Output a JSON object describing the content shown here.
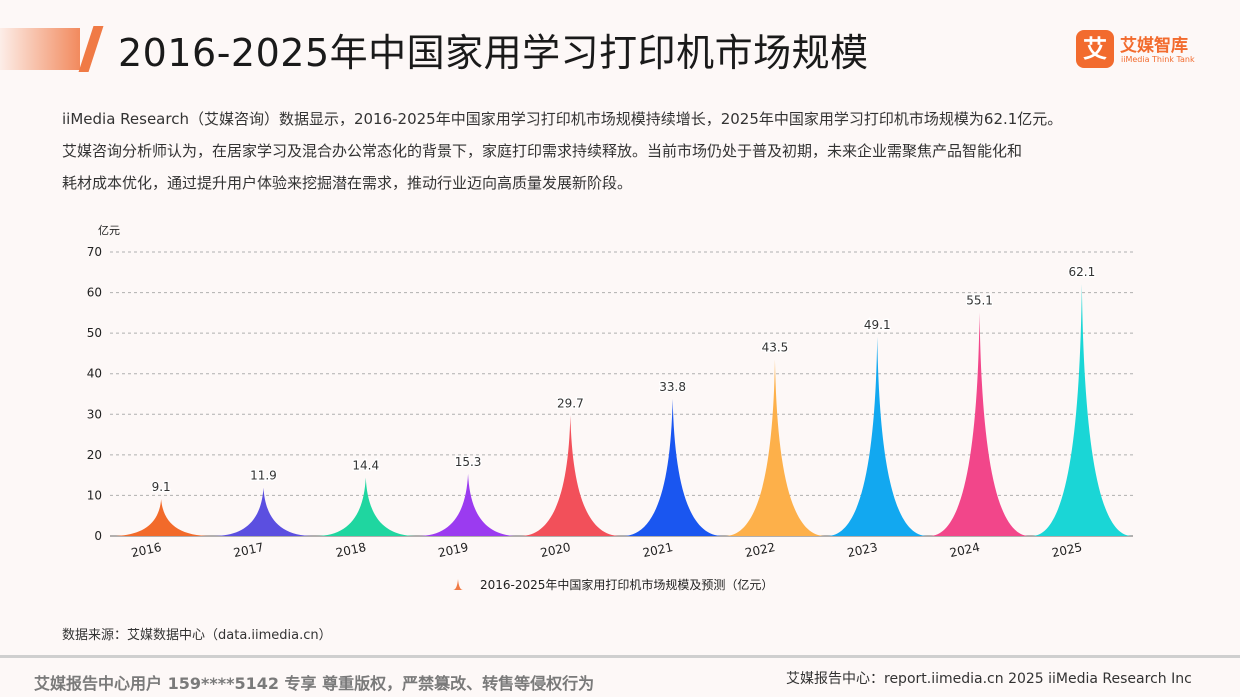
{
  "header": {
    "title": "2016-2025年中国家用学习打印机市场规模",
    "logo_cn": "艾媒智库",
    "logo_en": "iiMedia Think Tank",
    "logo_mark": "艾"
  },
  "description": [
    "iiMedia Research（艾媒咨询）数据显示，2016-2025年中国家用学习打印机市场规模持续增长，2025年中国家用学习打印机市场规模为62.1亿元。",
    "艾媒咨询分析师认为，在居家学习及混合办公常态化的背景下，家庭打印需求持续释放。当前市场仍处于普及初期，未来企业需聚焦产品智能化和",
    "耗材成本优化，通过提升用户体验来挖掘潜在需求，推动行业迈向高质量发展新阶段。"
  ],
  "chart_data": {
    "type": "bar",
    "unit_label": "亿元",
    "categories": [
      "2016",
      "2017",
      "2018",
      "2019",
      "2020",
      "2021",
      "2022",
      "2023",
      "2024",
      "2025"
    ],
    "series": [
      {
        "name": "2016-2025年中国家用打印机市场规模及预测（亿元）",
        "values": [
          9.1,
          11.9,
          14.4,
          15.3,
          29.7,
          33.8,
          43.5,
          49.1,
          55.1,
          62.1
        ]
      }
    ],
    "ylim": [
      0,
      70
    ],
    "yticks": [
      0,
      10,
      20,
      30,
      40,
      50,
      60,
      70
    ],
    "grid": true,
    "legend_position": "bottom-center",
    "bar_style": "peak",
    "colors": [
      "#f26a2a",
      "#5b4fe0",
      "#1fd6a0",
      "#9b3bf0",
      "#f2505a",
      "#1a56f0",
      "#fdb04a",
      "#12a8f0",
      "#f2468a",
      "#1ad6d6"
    ],
    "legend_color": "#f07a45"
  },
  "source": "数据来源：艾媒数据中心（data.iimedia.cn）",
  "footer": {
    "left": "艾媒报告中心用户 159****5142 专享 尊重版权，严禁篡改、转售等侵权行为",
    "right": "艾媒报告中心：report.iimedia.cn   2025 iiMedia Research Inc"
  }
}
